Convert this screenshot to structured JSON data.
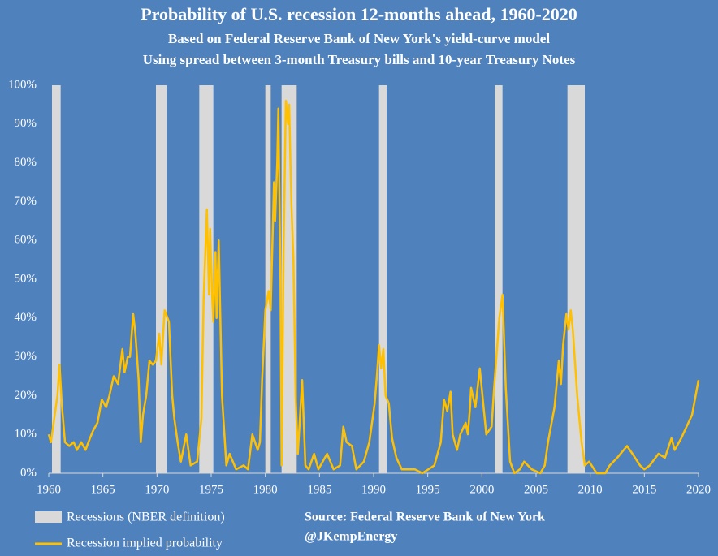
{
  "chart_data": {
    "type": "line",
    "title": "Probability of U.S. recession 12-months ahead, 1960-2020",
    "subtitle": [
      "Based on Federal Reserve Bank of New York's yield-curve model",
      "Using spread between 3-month Treasury bills and 10-year Treasury Notes"
    ],
    "source": [
      "Source: Federal Reserve Bank of New York",
      "@JKempEnergy"
    ],
    "xlim": [
      1960,
      2020
    ],
    "xticks": [
      1960,
      1965,
      1970,
      1975,
      1980,
      1985,
      1990,
      1995,
      2000,
      2005,
      2010,
      2015,
      2020
    ],
    "ylim": [
      0,
      100
    ],
    "yticks": [
      {
        "value": 0,
        "label": "0%"
      },
      {
        "value": 10,
        "label": "10%"
      },
      {
        "value": 20,
        "label": "20%"
      },
      {
        "value": 30,
        "label": "30%"
      },
      {
        "value": 40,
        "label": "40%"
      },
      {
        "value": 50,
        "label": "50%"
      },
      {
        "value": 60,
        "label": "60%"
      },
      {
        "value": 70,
        "label": "70%"
      },
      {
        "value": 80,
        "label": "80%"
      },
      {
        "value": 90,
        "label": "90%"
      },
      {
        "value": 100,
        "label": "100%"
      }
    ],
    "recessions": {
      "name": "Recessions (NBER definition)",
      "color": "#d9d9d9",
      "spans": [
        [
          1960.3,
          1961.1
        ],
        [
          1969.9,
          1970.9
        ],
        [
          1973.9,
          1975.2
        ],
        [
          1980.0,
          1980.5
        ],
        [
          1981.5,
          1982.9
        ],
        [
          1990.5,
          1991.2
        ],
        [
          2001.2,
          2001.9
        ],
        [
          2007.9,
          2009.5
        ]
      ]
    },
    "x": [
      1960.0,
      1960.2,
      1960.8,
      1961.0,
      1961.2,
      1961.5,
      1961.9,
      1962.3,
      1962.6,
      1963.0,
      1963.4,
      1963.8,
      1964.1,
      1964.5,
      1964.9,
      1965.3,
      1965.6,
      1966.0,
      1966.4,
      1966.8,
      1967.0,
      1967.3,
      1967.5,
      1967.8,
      1968.0,
      1968.3,
      1968.5,
      1968.7,
      1969.0,
      1969.3,
      1969.6,
      1969.9,
      1970.2,
      1970.4,
      1970.7,
      1971.1,
      1971.4,
      1971.6,
      1971.9,
      1972.2,
      1972.7,
      1973.1,
      1973.7,
      1974.1,
      1974.3,
      1974.6,
      1974.8,
      1974.9,
      1975.1,
      1975.2,
      1975.4,
      1975.5,
      1975.7,
      1976.0,
      1976.4,
      1976.7,
      1977.3,
      1978.0,
      1978.4,
      1978.8,
      1979.3,
      1979.5,
      1979.7,
      1980.0,
      1980.3,
      1980.5,
      1980.8,
      1980.9,
      1981.1,
      1981.2,
      1981.4,
      1981.5,
      1981.7,
      1981.9,
      1982.1,
      1982.2,
      1982.4,
      1982.6,
      1982.8,
      1983.0,
      1983.4,
      1983.7,
      1984.0,
      1984.5,
      1984.9,
      1985.7,
      1986.3,
      1986.9,
      1987.2,
      1987.5,
      1988.0,
      1988.4,
      1989.1,
      1989.6,
      1990.1,
      1990.3,
      1990.5,
      1990.7,
      1990.9,
      1991.1,
      1991.4,
      1991.7,
      1992.1,
      1992.6,
      1993.8,
      1994.5,
      1995.6,
      1996.2,
      1996.5,
      1996.8,
      1997.1,
      1997.3,
      1997.7,
      1998.0,
      1998.5,
      1998.7,
      1998.9,
      1999.0,
      1999.4,
      1999.8,
      2000.4,
      2000.9,
      2001.1,
      2001.6,
      2001.9,
      2002.2,
      2002.6,
      2003.0,
      2003.5,
      2003.9,
      2004.6,
      2005.4,
      2005.8,
      2006.1,
      2006.7,
      2007.1,
      2007.3,
      2007.5,
      2007.8,
      2008.0,
      2008.2,
      2008.4,
      2008.8,
      2009.2,
      2009.5,
      2009.9,
      2010.6,
      2011.4,
      2011.8,
      2012.5,
      2013.4,
      2013.9,
      2014.6,
      2015.0,
      2015.5,
      2016.3,
      2016.9,
      2017.5,
      2017.8,
      2018.4,
      2018.9,
      2019.4,
      2020.0
    ],
    "series": [
      {
        "name": "Recession implied probability",
        "color": "#ffc000",
        "values": [
          10,
          8,
          20,
          28,
          18,
          8,
          7,
          8,
          6,
          8,
          6,
          9,
          11,
          13,
          19,
          17,
          20,
          25,
          23,
          32,
          26,
          30,
          30,
          41,
          36,
          24,
          8,
          15,
          20,
          29,
          28,
          29,
          36,
          28,
          42,
          39,
          20,
          14,
          8,
          3,
          10,
          2,
          3,
          14,
          45,
          68,
          46,
          63,
          45,
          39,
          57,
          40,
          60,
          20,
          2,
          5,
          1,
          2,
          1,
          10,
          6,
          8,
          24,
          42,
          47,
          42,
          75,
          65,
          80,
          94,
          50,
          2,
          60,
          96,
          90,
          95,
          70,
          55,
          20,
          5,
          24,
          2,
          1,
          5,
          1,
          5,
          1,
          2,
          12,
          8,
          7,
          1,
          3,
          8,
          18,
          25,
          33,
          27,
          32,
          20,
          18,
          9,
          4,
          1,
          1,
          0,
          2,
          8,
          19,
          16,
          21,
          10,
          6,
          10,
          13,
          10,
          17,
          22,
          17,
          27,
          10,
          12,
          21,
          40,
          46,
          22,
          3,
          0,
          1,
          3,
          1,
          0,
          2,
          8,
          17,
          29,
          23,
          33,
          41,
          37,
          42,
          37,
          20,
          8,
          2,
          3,
          0,
          0,
          2,
          4,
          7,
          5,
          2,
          1,
          2,
          5,
          4,
          9,
          6,
          9,
          12,
          15,
          24
        ]
      }
    ]
  }
}
